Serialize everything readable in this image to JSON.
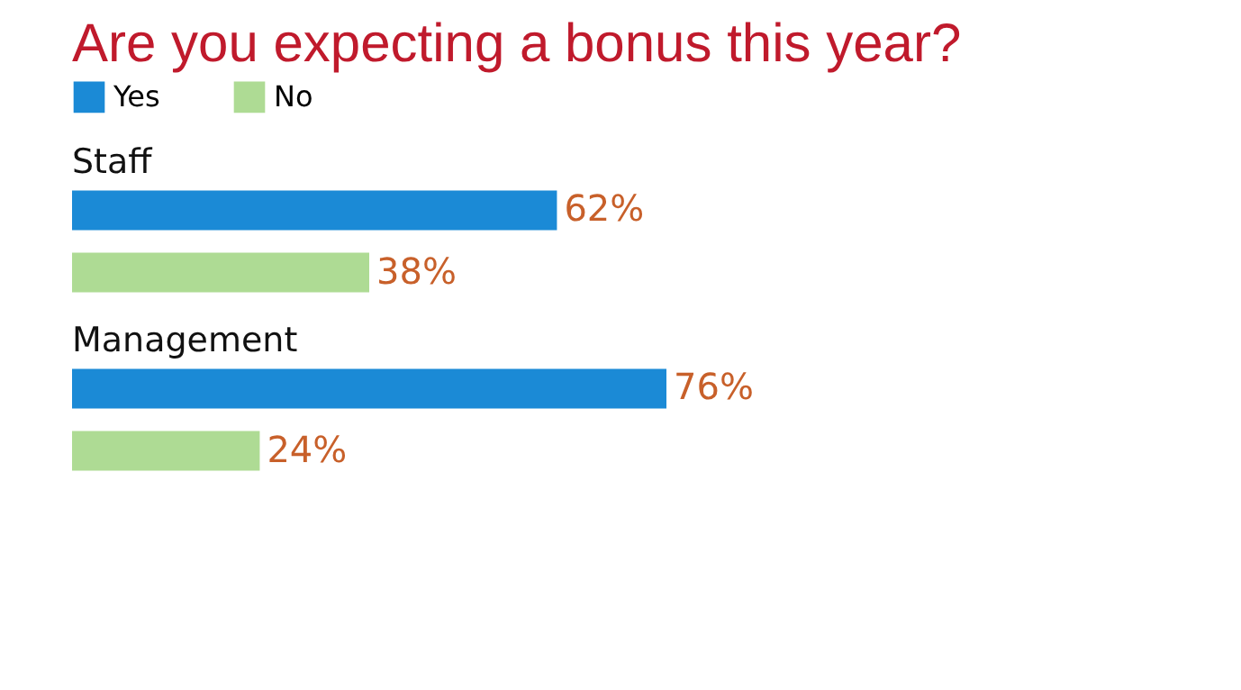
{
  "chart_data": {
    "type": "bar",
    "orientation": "horizontal",
    "title": "Are you expecting a bonus this year?",
    "categories": [
      "Staff",
      "Management"
    ],
    "series": [
      {
        "name": "Yes",
        "color": "#1b8ad6",
        "values": [
          62,
          76
        ],
        "value_labels": [
          "62%",
          "76%"
        ]
      },
      {
        "name": "No",
        "color": "#aedb94",
        "values": [
          38,
          24
        ],
        "value_labels": [
          "38%",
          "24%"
        ]
      }
    ],
    "legend": "top left"
  }
}
